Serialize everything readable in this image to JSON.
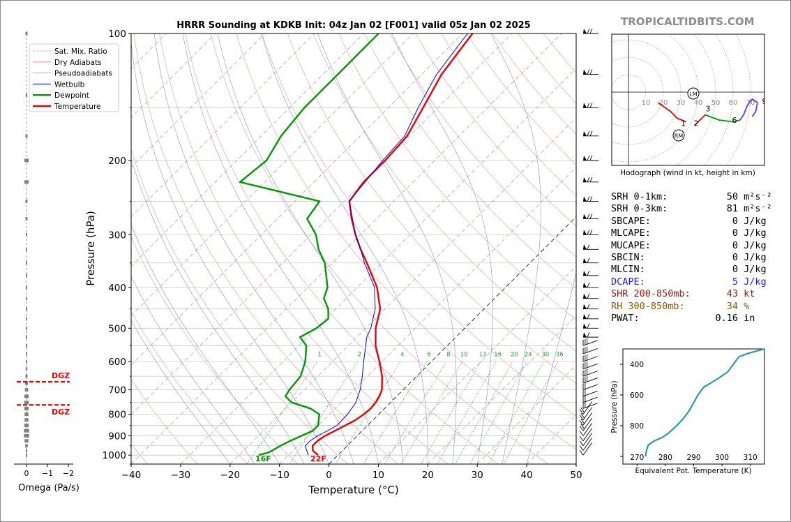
{
  "brand": "TROPICALTIDBITS.COM",
  "chart_data": {
    "type": "line",
    "title": "HRRR Sounding at KDKB Init: 04z Jan 02 [F001] valid 05z Jan 02 2025",
    "xlabel": "Temperature (°C)",
    "ylabel": "Pressure (hPa)",
    "xlim": [
      -40,
      50
    ],
    "ylim": [
      1050,
      100
    ],
    "yscale": "log",
    "skew": true,
    "xticks": [
      "−40",
      "−30",
      "−20",
      "−10",
      "0",
      "10",
      "20",
      "30",
      "40",
      "50"
    ],
    "yticks": [
      "100",
      "200",
      "300",
      "400",
      "500",
      "600",
      "700",
      "800",
      "900",
      "1000"
    ],
    "legend": {
      "position": "upper-left",
      "entries": [
        {
          "label": "Sat. Mix. Ratio",
          "color": "#33a033",
          "style": "dotted"
        },
        {
          "label": "Dry Adiabats",
          "color": "#e08080",
          "style": "solid"
        },
        {
          "label": "Pseudoadiabats",
          "color": "#9090c0",
          "style": "solid"
        },
        {
          "label": "Wetbulb",
          "color": "#0000ee",
          "style": "solid"
        },
        {
          "label": "Dewpoint",
          "color": "#009900",
          "style": "solid"
        },
        {
          "label": "Temperature",
          "color": "#ee0000",
          "style": "solid"
        }
      ]
    },
    "series": [
      {
        "name": "Temperature",
        "color": "#ee0000",
        "points": [
          [
            1000,
            -4.0
          ],
          [
            975,
            -6.0
          ],
          [
            950,
            -7.0
          ],
          [
            925,
            -7.0
          ],
          [
            900,
            -6.5
          ],
          [
            875,
            -5.5
          ],
          [
            850,
            -4.5
          ],
          [
            825,
            -3.5
          ],
          [
            800,
            -3.0
          ],
          [
            775,
            -2.8
          ],
          [
            750,
            -3.0
          ],
          [
            725,
            -3.5
          ],
          [
            700,
            -4.3
          ],
          [
            650,
            -7.0
          ],
          [
            600,
            -10.5
          ],
          [
            550,
            -14.5
          ],
          [
            500,
            -18.0
          ],
          [
            450,
            -21.0
          ],
          [
            400,
            -26.0
          ],
          [
            350,
            -33.0
          ],
          [
            325,
            -37.0
          ],
          [
            300,
            -41.0
          ],
          [
            275,
            -45.0
          ],
          [
            250,
            -49.0
          ],
          [
            225,
            -50.0
          ],
          [
            200,
            -50.0
          ],
          [
            175,
            -50.5
          ],
          [
            150,
            -53.0
          ],
          [
            125,
            -56.0
          ],
          [
            100,
            -58.0
          ]
        ]
      },
      {
        "name": "Dewpoint",
        "color": "#009900",
        "points": [
          [
            1000,
            -16.0
          ],
          [
            985,
            -14.5
          ],
          [
            975,
            -14.2
          ],
          [
            950,
            -13.5
          ],
          [
            925,
            -12.5
          ],
          [
            900,
            -11.3
          ],
          [
            875,
            -10.0
          ],
          [
            850,
            -10.0
          ],
          [
            800,
            -12.0
          ],
          [
            775,
            -15.0
          ],
          [
            750,
            -20.0
          ],
          [
            725,
            -22.5
          ],
          [
            700,
            -23.0
          ],
          [
            650,
            -23.5
          ],
          [
            600,
            -25.5
          ],
          [
            550,
            -28.5
          ],
          [
            525,
            -31.5
          ],
          [
            500,
            -30.0
          ],
          [
            475,
            -29.5
          ],
          [
            450,
            -31.5
          ],
          [
            425,
            -34.5
          ],
          [
            400,
            -36.0
          ],
          [
            350,
            -41.5
          ],
          [
            325,
            -45.5
          ],
          [
            300,
            -49.0
          ],
          [
            275,
            -54.0
          ],
          [
            250,
            -55.0
          ],
          [
            225,
            -75.0
          ],
          [
            200,
            -74.0
          ],
          [
            175,
            -76.0
          ],
          [
            150,
            -77.0
          ],
          [
            125,
            -77.0
          ],
          [
            100,
            -77.0
          ]
        ]
      },
      {
        "name": "Wetbulb",
        "color": "#0000ee",
        "points": [
          [
            1000,
            -6.0
          ],
          [
            950,
            -8.5
          ],
          [
            925,
            -8.5
          ],
          [
            900,
            -8.0
          ],
          [
            875,
            -7.0
          ],
          [
            850,
            -6.2
          ],
          [
            800,
            -6.3
          ],
          [
            750,
            -7.0
          ],
          [
            700,
            -8.7
          ],
          [
            650,
            -11.0
          ],
          [
            600,
            -13.7
          ],
          [
            550,
            -16.5
          ],
          [
            525,
            -18.0
          ],
          [
            500,
            -19.0
          ],
          [
            450,
            -22.0
          ],
          [
            400,
            -26.5
          ],
          [
            350,
            -33.5
          ],
          [
            325,
            -37.0
          ],
          [
            300,
            -41.0
          ],
          [
            250,
            -49.0
          ],
          [
            200,
            -50.5
          ],
          [
            175,
            -51.0
          ],
          [
            150,
            -54.0
          ],
          [
            125,
            -57.0
          ],
          [
            100,
            -59.0
          ]
        ]
      }
    ],
    "surface_labels": {
      "temperature": "22F",
      "dewpoint": "16F"
    },
    "mixing_ratio_labels": [
      "1",
      "2",
      "4",
      "6",
      "8",
      "10",
      "13",
      "16",
      "20",
      "24",
      "30",
      "36"
    ],
    "mixing_ratios": [
      1,
      2,
      4,
      6,
      8,
      10,
      13,
      16,
      20,
      24,
      30,
      36
    ],
    "dry_adiabats_theta_c": [
      -50,
      -40,
      -30,
      -20,
      -10,
      0,
      10,
      20,
      30,
      40,
      50,
      60,
      70,
      80,
      90,
      100,
      110,
      120,
      130,
      140,
      150,
      160,
      170
    ],
    "moist_adiabats_c": [
      -20,
      -15,
      -10,
      -5,
      0,
      5,
      10,
      15,
      20,
      25,
      30,
      35,
      40
    ],
    "wind_barb_pressures": [
      100,
      125,
      150,
      175,
      200,
      225,
      250,
      275,
      300,
      325,
      350,
      375,
      400,
      425,
      450,
      475,
      500,
      525,
      550,
      575,
      600,
      625,
      650,
      675,
      700,
      725,
      750,
      775,
      800,
      825,
      850,
      875,
      900,
      925,
      950,
      975,
      1000
    ]
  },
  "omega": {
    "xlabel": "Omega (Pa/s)",
    "xticks": [
      "0",
      "−1",
      "−2"
    ],
    "dgz_label": "DGZ",
    "dgz_pressures": [
      670,
      760
    ],
    "values": [
      [
        100,
        0.05
      ],
      [
        140,
        0.04
      ],
      [
        175,
        0.05
      ],
      [
        200,
        0.1
      ],
      [
        225,
        0.1
      ],
      [
        250,
        0.05
      ],
      [
        275,
        0.05
      ],
      [
        300,
        0.03
      ],
      [
        325,
        0.01
      ],
      [
        350,
        0.01
      ],
      [
        375,
        0.01
      ],
      [
        400,
        0.01
      ],
      [
        425,
        0.02
      ],
      [
        450,
        0.02
      ],
      [
        475,
        0.02
      ],
      [
        500,
        0.02
      ],
      [
        525,
        0.03
      ],
      [
        550,
        0.03
      ],
      [
        575,
        0.03
      ],
      [
        600,
        0.03
      ],
      [
        625,
        0.04
      ],
      [
        650,
        0.05
      ],
      [
        675,
        0.07
      ],
      [
        700,
        0.08
      ],
      [
        725,
        0.1
      ],
      [
        750,
        0.1
      ],
      [
        775,
        0.1
      ],
      [
        800,
        0.09
      ],
      [
        825,
        0.09
      ],
      [
        850,
        0.1
      ],
      [
        875,
        0.12
      ],
      [
        900,
        0.12
      ],
      [
        925,
        0.09
      ],
      [
        950,
        0.06
      ],
      [
        975,
        0.03
      ],
      [
        1000,
        0.02
      ]
    ]
  },
  "hodograph": {
    "caption": "Hodograph (wind in kt, height in km)",
    "rings": [
      "10",
      "20",
      "30",
      "40",
      "50",
      "60",
      "70"
    ],
    "markers": {
      "storm_motion_lm": "LM",
      "storm_motion_rm": "RM"
    },
    "height_labels": [
      "1",
      "2",
      "3",
      "6",
      "9"
    ],
    "track": [
      [
        17,
        -6
      ],
      [
        24,
        -11
      ],
      [
        28,
        -15
      ],
      [
        33,
        -17
      ],
      [
        38,
        -19
      ],
      [
        40,
        -17
      ],
      [
        44,
        -13
      ],
      [
        52,
        -16
      ],
      [
        60,
        -17
      ],
      [
        64,
        -16
      ],
      [
        66,
        -13
      ],
      [
        68,
        -8
      ],
      [
        70,
        -5
      ],
      [
        71,
        -4
      ],
      [
        74,
        -6
      ],
      [
        73,
        -11
      ],
      [
        71,
        -14
      ]
    ]
  },
  "theta_e": {
    "xlabel": "Equivalent Pot. Temperature (K)",
    "ylabel": "Pressure (hPa)",
    "xticks": [
      "270",
      "280",
      "290",
      "300",
      "310"
    ],
    "yticks": [
      "400",
      "600",
      "800"
    ],
    "profile": [
      [
        1000,
        273.0
      ],
      [
        975,
        273.2
      ],
      [
        950,
        273.5
      ],
      [
        925,
        274.0
      ],
      [
        900,
        276.0
      ],
      [
        875,
        279.0
      ],
      [
        850,
        281.0
      ],
      [
        800,
        284.0
      ],
      [
        750,
        286.5
      ],
      [
        700,
        288.5
      ],
      [
        650,
        290.0
      ],
      [
        600,
        291.5
      ],
      [
        550,
        293.5
      ],
      [
        500,
        298.0
      ],
      [
        450,
        302.0
      ],
      [
        400,
        304.0
      ],
      [
        375,
        305.0
      ],
      [
        350,
        306.0
      ],
      [
        330,
        309.0
      ],
      [
        300,
        315.0
      ]
    ]
  },
  "stats": [
    {
      "label": "SRH 0-1km:",
      "value": "50",
      "unit": "m²s⁻²",
      "color": "#000000"
    },
    {
      "label": "SRH 0-3km:",
      "value": "81",
      "unit": "m²s⁻²",
      "color": "#000000"
    },
    {
      "label": "SBCAPE:",
      "value": "0",
      "unit": "J/kg",
      "color": "#000000"
    },
    {
      "label": "MLCAPE:",
      "value": "0",
      "unit": "J/kg",
      "color": "#000000"
    },
    {
      "label": "MUCAPE:",
      "value": "0",
      "unit": "J/kg",
      "color": "#000000"
    },
    {
      "label": "SBCIN:",
      "value": "0",
      "unit": "J/kg",
      "color": "#000000"
    },
    {
      "label": "MLCIN:",
      "value": "0",
      "unit": "J/kg",
      "color": "#000000"
    },
    {
      "label": "DCAPE:",
      "value": "5",
      "unit": "J/kg",
      "color": "#1e1ee6"
    },
    {
      "label": "SHR 200-850mb:",
      "value": "43",
      "unit": "kt",
      "color": "#a01818"
    },
    {
      "label": "RH 300-850mb:",
      "value": "34",
      "unit": "%",
      "color": "#8a5a00"
    },
    {
      "label": "PWAT:",
      "value": "0.16",
      "unit": "in",
      "color": "#000000"
    }
  ]
}
